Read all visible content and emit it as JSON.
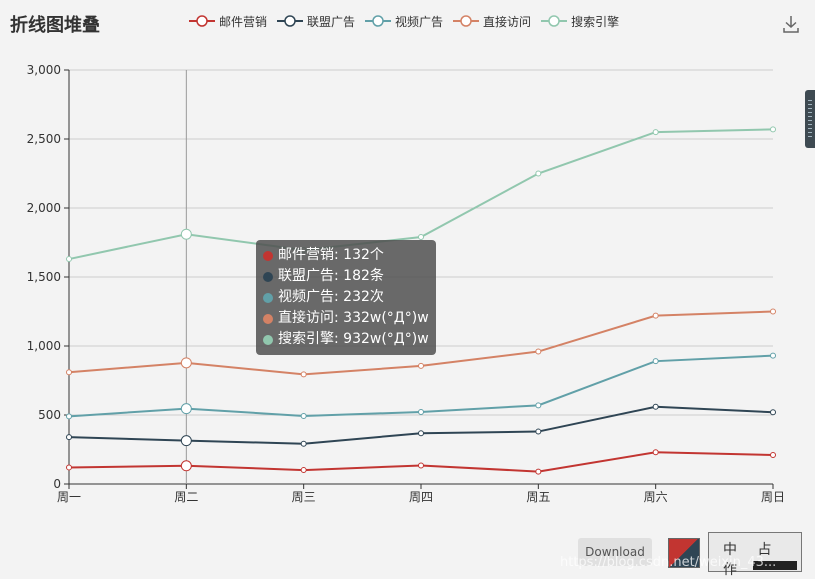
{
  "chart_title": "折线图堆叠",
  "download_label": "Download",
  "watermark": "https://blog.csdn.net/weixin_43...",
  "stamp_text": "中 占 作",
  "colors": {
    "邮件营销": "#c23531",
    "联盟广告": "#2f4554",
    "视频广告": "#61a0a8",
    "直接访问": "#d48265",
    "搜索引擎": "#91c7ae"
  },
  "tooltip": [
    {
      "text": "邮件营销: 132个",
      "color": "#c23531"
    },
    {
      "text": "联盟广告: 182条",
      "color": "#2f4554"
    },
    {
      "text": "视频广告: 232次",
      "color": "#61a0a8"
    },
    {
      "text": "直接访问: 332w(°Д°)w",
      "color": "#d48265"
    },
    {
      "text": "搜索引擎: 932w(°Д°)w",
      "color": "#91c7ae"
    }
  ],
  "chart_data": {
    "type": "line",
    "stacked": true,
    "title": "折线图堆叠",
    "categories": [
      "周一",
      "周二",
      "周三",
      "周四",
      "周五",
      "周六",
      "周日"
    ],
    "ylim": [
      0,
      3000
    ],
    "yticks": [
      "0",
      "500",
      "1,000",
      "1,500",
      "2,000",
      "2,500",
      "3,000"
    ],
    "ytick_values": [
      0,
      500,
      1000,
      1500,
      2000,
      2500,
      3000
    ],
    "grid": true,
    "legend_position": "top",
    "highlighted_category": "周二",
    "series": [
      {
        "name": "邮件营销",
        "values": [
          120,
          132,
          101,
          134,
          90,
          230,
          210
        ]
      },
      {
        "name": "联盟广告",
        "values": [
          220,
          182,
          191,
          234,
          290,
          330,
          310
        ]
      },
      {
        "name": "视频广告",
        "values": [
          150,
          232,
          201,
          154,
          190,
          330,
          410
        ]
      },
      {
        "name": "直接访问",
        "values": [
          320,
          332,
          301,
          334,
          390,
          330,
          320
        ]
      },
      {
        "name": "搜索引擎",
        "values": [
          820,
          932,
          901,
          934,
          1290,
          1330,
          1320
        ]
      }
    ]
  }
}
